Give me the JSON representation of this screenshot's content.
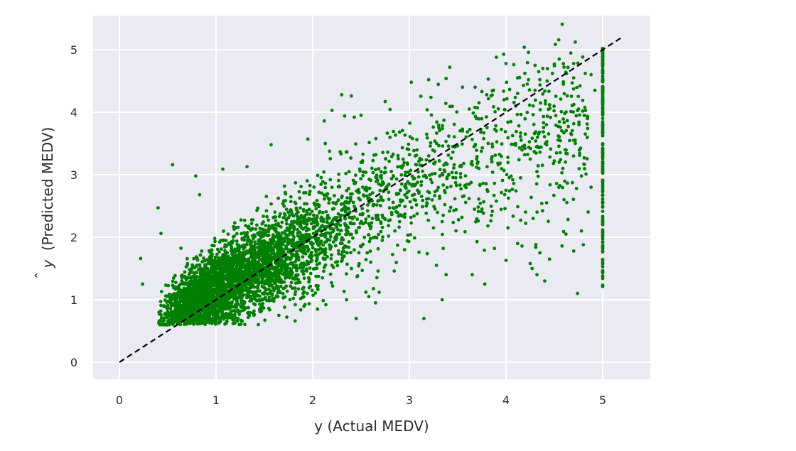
{
  "chart_data": {
    "type": "scatter",
    "title": "",
    "xlabel": "y (Actual MEDV)",
    "ylabel_hat": "y",
    "ylabel": "(Predicted MEDV)",
    "xlim": [
      -0.27,
      5.5
    ],
    "ylim": [
      -0.27,
      5.5
    ],
    "x_ticks": [
      0,
      1,
      2,
      3,
      4,
      5
    ],
    "y_ticks": [
      0,
      1,
      2,
      3,
      4,
      5
    ],
    "x_tick_labels": [
      "0",
      "1",
      "2",
      "3",
      "4",
      "5"
    ],
    "y_tick_labels": [
      "0",
      "1",
      "2",
      "3",
      "4",
      "5"
    ],
    "grid": true,
    "style": "seaborn-darkgrid",
    "colors": {
      "background": "#EAEAF2",
      "grid": "#FFFFFF",
      "points": "#007F00",
      "reference_line": "#000000"
    },
    "reference_line": {
      "label": "",
      "style": "dashed",
      "points": [
        [
          0,
          0
        ],
        [
          5.2,
          5.2
        ]
      ]
    },
    "series": [
      {
        "marker": "circle",
        "color": "#007F00",
        "points": [
          [
            0.22,
            1.66
          ],
          [
            0.24,
            1.25
          ],
          [
            0.4,
            2.47
          ],
          [
            0.43,
            2.06
          ],
          [
            0.55,
            3.16
          ],
          [
            0.79,
            2.98
          ],
          [
            0.83,
            2.68
          ],
          [
            1.07,
            3.09
          ],
          [
            1.32,
            3.13
          ],
          [
            1.57,
            3.48
          ],
          [
            1.95,
            3.57
          ],
          [
            2.13,
            3.5
          ],
          [
            2.3,
            4.28
          ],
          [
            2.4,
            4.26
          ],
          [
            2.5,
            3.95
          ],
          [
            2.75,
            4.17
          ],
          [
            2.2,
            4.03
          ],
          [
            2.33,
            3.94
          ],
          [
            2.43,
            3.92
          ],
          [
            2.12,
            3.86
          ],
          [
            3.02,
            4.48
          ],
          [
            3.2,
            4.52
          ],
          [
            3.38,
            4.54
          ],
          [
            3.55,
            4.4
          ],
          [
            3.68,
            4.4
          ],
          [
            3.75,
            4.33
          ],
          [
            3.9,
            4.88
          ],
          [
            4.0,
            4.78
          ],
          [
            4.08,
            4.76
          ],
          [
            4.12,
            4.55
          ],
          [
            4.3,
            4.75
          ],
          [
            4.38,
            4.7
          ],
          [
            4.5,
            4.77
          ],
          [
            4.55,
            4.85
          ],
          [
            4.6,
            4.72
          ],
          [
            4.7,
            4.78
          ],
          [
            4.82,
            4.62
          ],
          [
            4.88,
            4.6
          ],
          [
            4.92,
            4.35
          ],
          [
            4.7,
            4.55
          ],
          [
            4.3,
            4.35
          ],
          [
            4.18,
            4.43
          ],
          [
            4.1,
            4.1
          ],
          [
            4.45,
            4.12
          ],
          [
            4.75,
            4.05
          ],
          [
            4.82,
            3.65
          ],
          [
            4.7,
            3.55
          ],
          [
            4.55,
            3.2
          ],
          [
            4.78,
            2.98
          ],
          [
            4.88,
            2.8
          ],
          [
            4.6,
            2.6
          ],
          [
            4.42,
            2.55
          ],
          [
            4.28,
            2.3
          ],
          [
            4.62,
            2.05
          ],
          [
            4.78,
            2.1
          ],
          [
            4.8,
            1.88
          ],
          [
            4.45,
            1.65
          ],
          [
            4.35,
            1.75
          ],
          [
            4.27,
            1.5
          ],
          [
            4.32,
            1.4
          ],
          [
            4.12,
            1.9
          ],
          [
            4.0,
            1.63
          ],
          [
            4.02,
            2.15
          ],
          [
            3.88,
            1.82
          ],
          [
            4.25,
            1.58
          ],
          [
            4.7,
            1.78
          ],
          [
            4.4,
            1.3
          ],
          [
            4.74,
            1.1
          ],
          [
            3.78,
            1.25
          ],
          [
            3.65,
            1.4
          ],
          [
            3.38,
            1.4
          ],
          [
            3.28,
            1.55
          ],
          [
            3.35,
            1.82
          ],
          [
            3.1,
            1.76
          ],
          [
            2.95,
            1.8
          ],
          [
            3.34,
            1.0
          ],
          [
            3.15,
            0.7
          ],
          [
            2.45,
            0.7
          ],
          [
            1.65,
            0.75
          ],
          [
            2.05,
            0.85
          ],
          [
            2.58,
            1.05
          ],
          [
            2.35,
            1.0
          ],
          [
            2.55,
            1.12
          ],
          [
            1.9,
            1.1
          ],
          [
            1.6,
            1.02
          ],
          [
            1.35,
            0.98
          ],
          [
            1.12,
            0.93
          ],
          [
            0.9,
            0.78
          ],
          [
            1.82,
            0.92
          ],
          [
            2.65,
            0.95
          ],
          [
            3.7,
            1.93
          ],
          [
            3.85,
            2.35
          ],
          [
            4.0,
            2.75
          ],
          [
            4.15,
            2.95
          ],
          [
            4.25,
            3.25
          ],
          [
            4.32,
            3.05
          ],
          [
            4.42,
            3.48
          ],
          [
            4.5,
            3.22
          ],
          [
            4.2,
            3.65
          ],
          [
            4.05,
            3.85
          ],
          [
            3.9,
            3.7
          ],
          [
            3.85,
            3.25
          ],
          [
            3.72,
            3.1
          ],
          [
            3.62,
            2.85
          ],
          [
            3.55,
            2.65
          ],
          [
            3.48,
            2.95
          ],
          [
            3.35,
            2.35
          ],
          [
            3.25,
            2.15
          ],
          [
            3.18,
            2.55
          ],
          [
            3.05,
            2.6
          ],
          [
            2.92,
            2.35
          ],
          [
            2.85,
            2.1
          ],
          [
            2.72,
            1.95
          ],
          [
            2.6,
            1.6
          ],
          [
            2.5,
            1.85
          ],
          [
            2.4,
            1.5
          ],
          [
            2.3,
            1.72
          ],
          [
            2.2,
            1.55
          ],
          [
            2.1,
            1.35
          ],
          [
            1.98,
            1.42
          ],
          [
            3.45,
            3.45
          ],
          [
            3.55,
            3.7
          ],
          [
            3.62,
            4.05
          ],
          [
            3.72,
            4.15
          ],
          [
            3.8,
            4.28
          ],
          [
            3.98,
            4.2
          ],
          [
            4.12,
            4.3
          ],
          [
            4.22,
            4.45
          ],
          [
            4.35,
            4.52
          ],
          [
            4.48,
            4.62
          ]
        ]
      }
    ],
    "vertical_cluster": {
      "x": 5.0,
      "y_min": 1.15,
      "y_max": 5.02,
      "count": 150
    },
    "point_cloud": {
      "count": 4200,
      "band_center_slope": 0.85,
      "band_center_intercept": 0.32
    }
  }
}
